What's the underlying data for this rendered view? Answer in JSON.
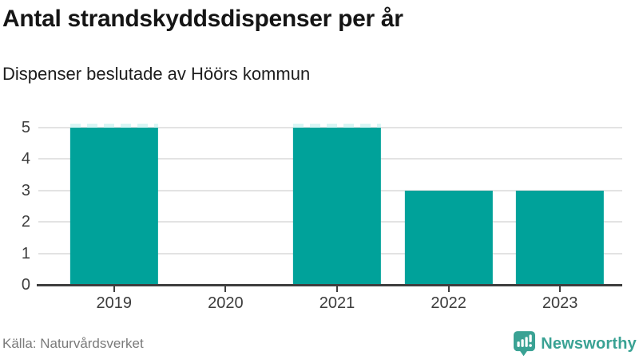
{
  "header": {
    "title": "Antal strandskyddsdispenser per år",
    "subtitle": "Dispenser beslutade av Höörs kommun"
  },
  "chart_data": {
    "type": "bar",
    "title": "Antal strandskyddsdispenser per år",
    "subtitle": "Dispenser beslutade av Höörs kommun",
    "categories": [
      "2019",
      "2020",
      "2021",
      "2022",
      "2023"
    ],
    "values": [
      5,
      0,
      5,
      3,
      3
    ],
    "xlabel": "",
    "ylabel": "",
    "ylim": [
      0,
      5
    ],
    "yticks": [
      0,
      1,
      2,
      3,
      4,
      5
    ],
    "grid": true,
    "legend": false,
    "bar_color": "#00a29a"
  },
  "footer": {
    "source": "Källa: Naturvårdsverket",
    "brand": "Newsworthy"
  },
  "colors": {
    "bar": "#00a29a",
    "brand": "#3aa294",
    "axis": "#3e3e3e",
    "grid": "#e3e3e3",
    "title_text": "#151515",
    "muted_text": "#7a7a7a"
  }
}
